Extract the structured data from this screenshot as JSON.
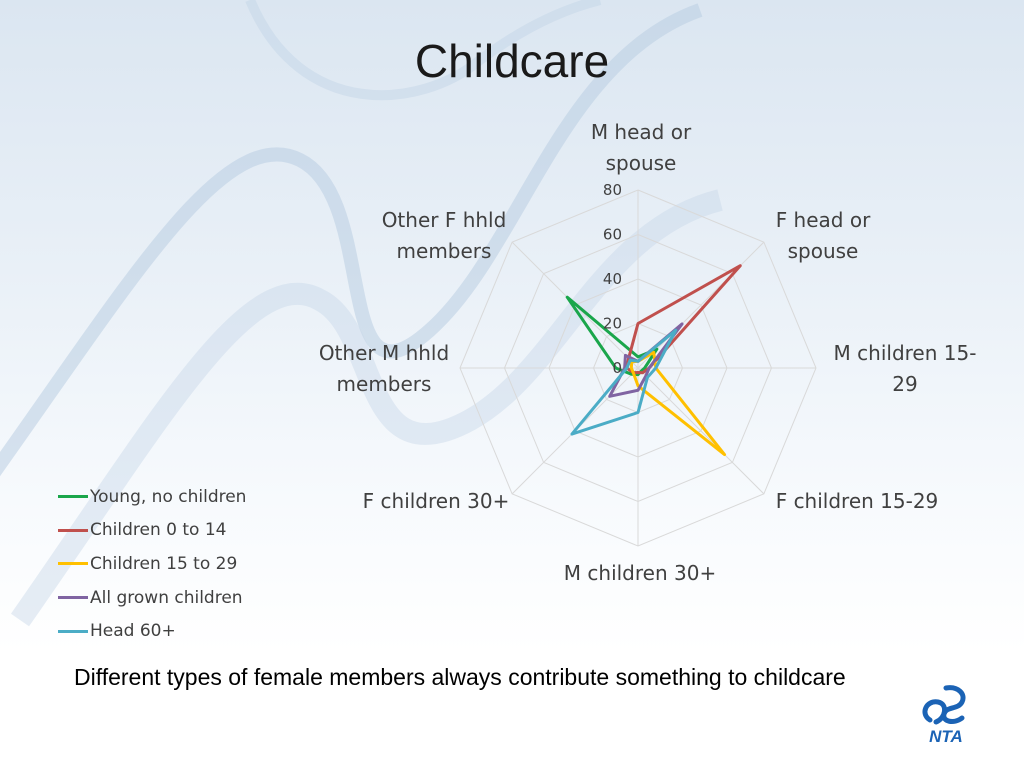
{
  "slide": {
    "title": "Childcare",
    "caption": "Different types of female members always contribute something to childcare",
    "logo_text": "NTA"
  },
  "colors": {
    "grid": "#d9d9d9",
    "text": "#404040",
    "logo": "#1b63b5"
  },
  "chart_data": {
    "type": "radar",
    "categories": [
      [
        "M head or",
        "spouse"
      ],
      [
        "F head or",
        "spouse"
      ],
      [
        "M children 15-",
        "29"
      ],
      [
        "F children 15-29"
      ],
      [
        "M children 30+"
      ],
      [
        "F children 30+"
      ],
      [
        "Other M hhld",
        "members"
      ],
      [
        "Other F hhld",
        "members"
      ]
    ],
    "ticks": [
      "0",
      "20",
      "40",
      "60",
      "80"
    ],
    "rmax": 80,
    "grid": true,
    "legend_position": "left",
    "series": [
      {
        "name": "Young, no children",
        "color": "#1aa64b",
        "values": [
          5,
          12,
          3,
          2,
          3,
          4,
          10,
          45
        ]
      },
      {
        "name": "Children 0 to 14",
        "color": "#c0504d",
        "values": [
          20,
          65,
          5,
          3,
          2,
          3,
          5,
          6
        ]
      },
      {
        "name": "Children 15 to 29",
        "color": "#ffc000",
        "values": [
          3,
          10,
          8,
          55,
          8,
          3,
          3,
          4
        ]
      },
      {
        "name": "All grown children",
        "color": "#8064a2",
        "values": [
          3,
          28,
          5,
          5,
          10,
          18,
          6,
          8
        ]
      },
      {
        "name": "Head 60+",
        "color": "#4bacc6",
        "values": [
          3,
          24,
          8,
          6,
          20,
          42,
          5,
          5
        ]
      }
    ]
  }
}
